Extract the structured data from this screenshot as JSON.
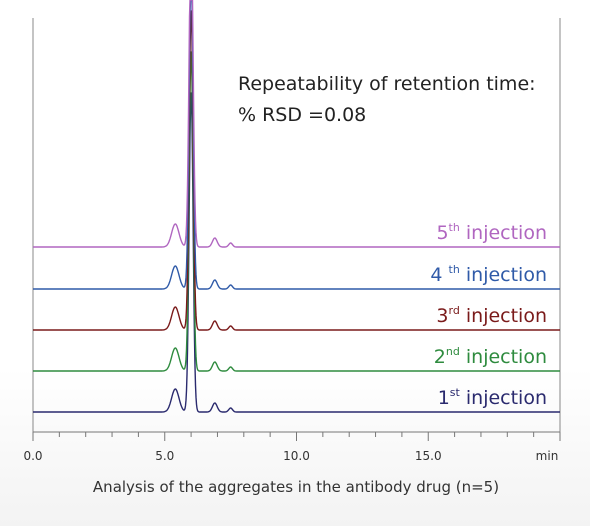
{
  "chart_data": {
    "type": "line",
    "title": "",
    "xlabel": "Analysis of the aggregates in the antibody drug (n=5)",
    "x_unit": "min",
    "xlim": [
      0,
      20
    ],
    "x_ticks": [
      "0.0",
      "5.0",
      "10.0",
      "15.0"
    ],
    "annotation_lines": [
      "Repeatability of retention time:",
      "% RSD =0.08"
    ],
    "peaks_min": [
      5.4,
      6.0,
      6.9,
      7.5
    ],
    "series": [
      {
        "name_num": "1",
        "name_sup": "st",
        "name_rest": " injection",
        "color": "#2a2a6e"
      },
      {
        "name_num": "2",
        "name_sup": "nd",
        "name_rest": " injection",
        "color": "#2e8b3e"
      },
      {
        "name_num": "3",
        "name_sup": "rd",
        "name_rest": " injection",
        "color": "#7a1a1a"
      },
      {
        "name_num": "4 ",
        "name_sup": "th",
        "name_rest": " injection",
        "color": "#2f5aa8"
      },
      {
        "name_num": "5",
        "name_sup": "th",
        "name_rest": " injection",
        "color": "#b066c0"
      }
    ]
  }
}
